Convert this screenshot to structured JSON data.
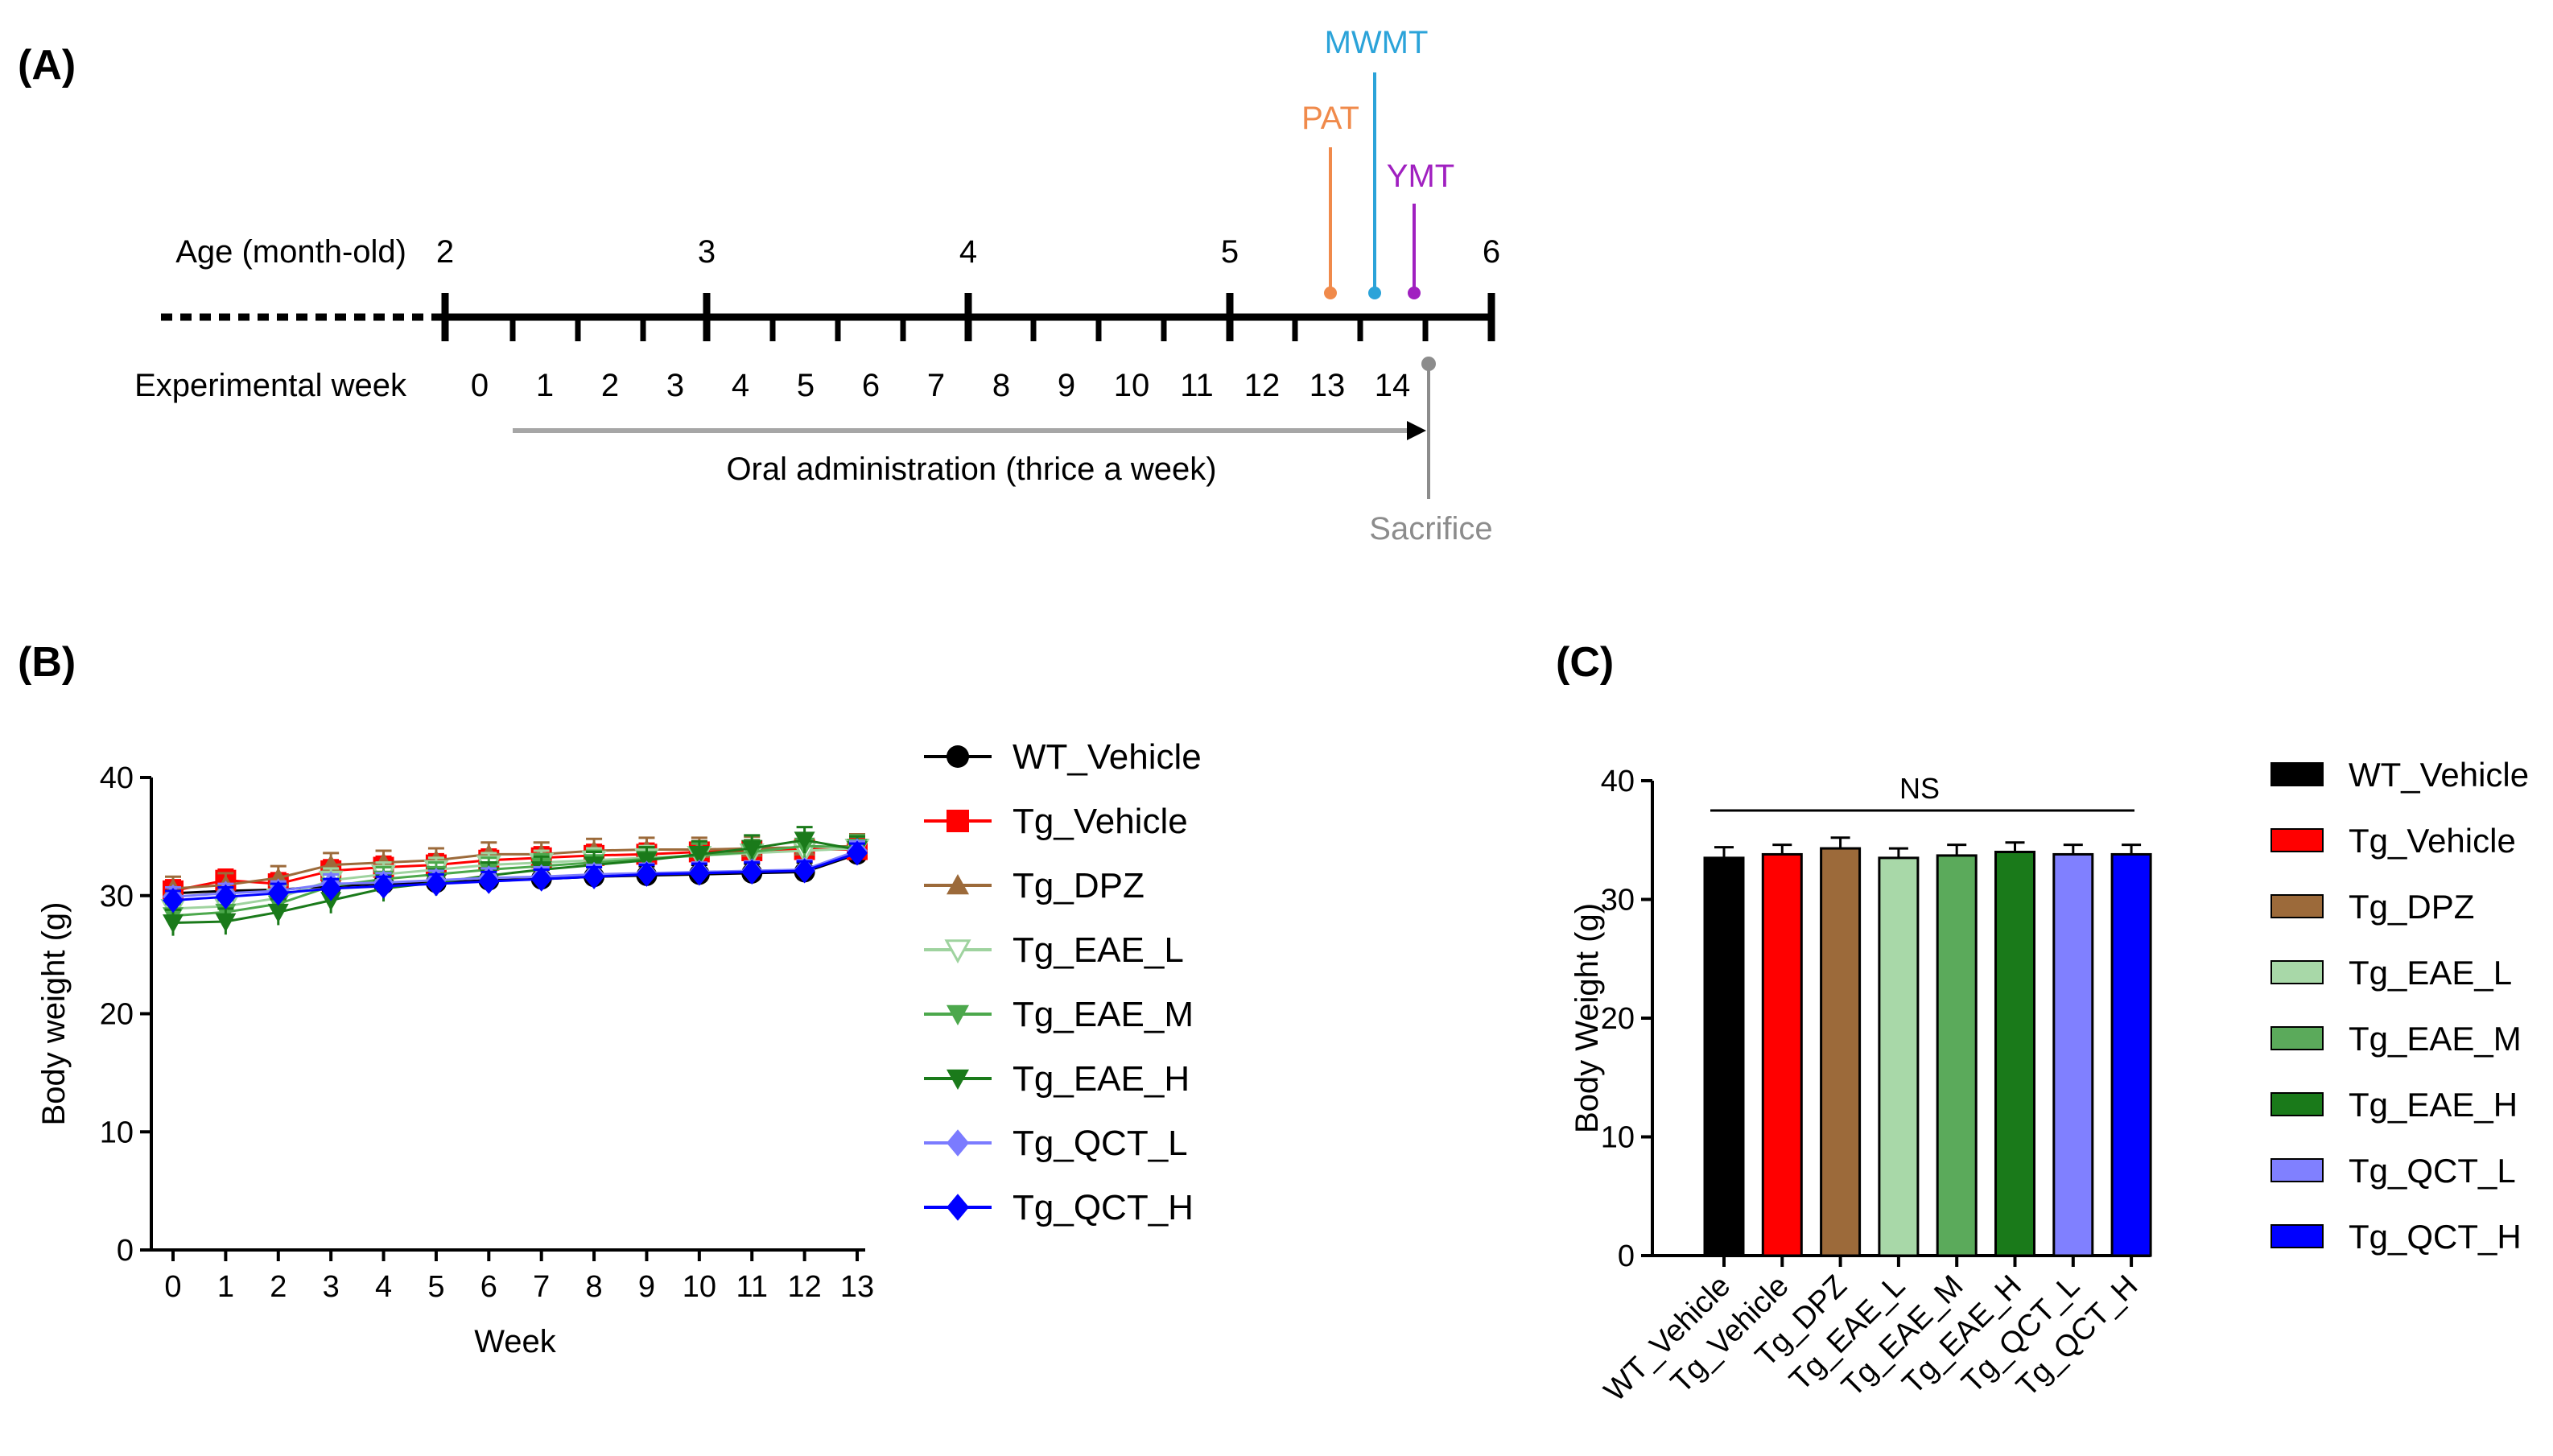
{
  "panels": {
    "a": {
      "label": "(A)",
      "age_label": "Age (month-old)",
      "ages": [
        "2",
        "3",
        "4",
        "5",
        "6"
      ],
      "week_label": "Experimental week",
      "weeks": [
        "0",
        "1",
        "2",
        "3",
        "4",
        "5",
        "6",
        "7",
        "8",
        "9",
        "10",
        "11",
        "12",
        "13",
        "14"
      ],
      "admin_label": "Oral administration (thrice a week)",
      "sacrifice_label": "Sacrifice",
      "events": [
        {
          "label": "PAT",
          "color": "#F08A4B"
        },
        {
          "label": "MWMT",
          "color": "#2BA3D9"
        },
        {
          "label": "YMT",
          "color": "#A020C0"
        }
      ],
      "sacrifice_color": "#8C8C8C",
      "arrow_color": "#A6A6A6"
    },
    "b": {
      "label": "(B)"
    },
    "c": {
      "label": "(C)"
    }
  },
  "chart_data": [
    {
      "type": "line",
      "panel": "B",
      "title": "",
      "xlabel": "Week",
      "ylabel": "Body weight (g)",
      "x": [
        0,
        1,
        2,
        3,
        4,
        5,
        6,
        7,
        8,
        9,
        10,
        11,
        12,
        13
      ],
      "xlim": [
        0,
        13
      ],
      "ylim": [
        0,
        40
      ],
      "yticks": [
        0,
        10,
        20,
        30,
        40
      ],
      "legend": "right",
      "series": [
        {
          "name": "WT_Vehicle",
          "color": "#000000",
          "marker": "circle",
          "values": [
            30.2,
            30.4,
            30.5,
            30.8,
            31.0,
            31.1,
            31.3,
            31.4,
            31.6,
            31.7,
            31.8,
            31.9,
            32.0,
            33.5
          ],
          "errors": [
            0.8,
            0.8,
            0.8,
            0.8,
            0.8,
            0.8,
            0.8,
            0.8,
            0.8,
            0.8,
            0.8,
            0.8,
            0.8,
            0.8
          ]
        },
        {
          "name": "Tg_Vehicle",
          "color": "#FF0000",
          "marker": "square",
          "values": [
            30.4,
            31.3,
            31.0,
            32.1,
            32.4,
            32.6,
            33.0,
            33.2,
            33.4,
            33.5,
            33.7,
            33.8,
            33.9,
            33.9
          ],
          "errors": [
            0.9,
            0.9,
            0.9,
            0.9,
            0.9,
            0.9,
            0.9,
            0.9,
            0.9,
            0.9,
            0.9,
            0.9,
            0.9,
            0.9
          ]
        },
        {
          "name": "Tg_DPZ",
          "color": "#9C6A3A",
          "marker": "triangle-up",
          "values": [
            30.6,
            30.9,
            31.5,
            32.6,
            32.8,
            33.0,
            33.5,
            33.5,
            33.8,
            33.9,
            33.9,
            34.0,
            34.1,
            34.2
          ],
          "errors": [
            1.0,
            1.0,
            1.0,
            1.0,
            1.0,
            1.0,
            1.0,
            1.0,
            1.0,
            1.0,
            1.0,
            1.0,
            1.0,
            1.0
          ]
        },
        {
          "name": "Tg_EAE_L",
          "color": "#9FD39F",
          "marker": "triangle-down-open",
          "values": [
            28.9,
            29.1,
            29.8,
            31.3,
            31.8,
            32.2,
            32.6,
            32.8,
            33.0,
            33.2,
            33.4,
            33.6,
            33.8,
            34.0
          ],
          "errors": [
            1.0,
            1.0,
            1.0,
            1.0,
            1.0,
            1.0,
            1.0,
            1.0,
            1.0,
            1.0,
            1.0,
            1.0,
            1.0,
            1.0
          ]
        },
        {
          "name": "Tg_EAE_M",
          "color": "#4CA84C",
          "marker": "triangle-down",
          "values": [
            28.3,
            28.6,
            29.3,
            30.8,
            31.4,
            31.8,
            32.2,
            32.5,
            32.8,
            33.1,
            33.4,
            33.7,
            34.2,
            34.1
          ],
          "errors": [
            1.0,
            1.0,
            1.0,
            1.0,
            1.0,
            1.0,
            1.0,
            1.0,
            1.0,
            1.0,
            1.0,
            1.0,
            1.0,
            1.0
          ]
        },
        {
          "name": "Tg_EAE_H",
          "color": "#1A7A1A",
          "marker": "triangle-down",
          "values": [
            27.7,
            27.8,
            28.6,
            29.6,
            30.6,
            31.1,
            31.7,
            32.2,
            32.6,
            33.0,
            33.5,
            34.0,
            34.7,
            33.9
          ],
          "errors": [
            1.1,
            1.1,
            1.1,
            1.1,
            1.1,
            1.1,
            1.1,
            1.1,
            1.1,
            1.1,
            1.1,
            1.1,
            1.1,
            1.1
          ]
        },
        {
          "name": "Tg_QCT_L",
          "color": "#7B7BFF",
          "marker": "diamond",
          "values": [
            29.9,
            30.2,
            30.4,
            31.0,
            31.1,
            31.3,
            31.5,
            31.6,
            31.8,
            31.9,
            32.0,
            32.1,
            32.2,
            33.8
          ],
          "errors": [
            0.8,
            0.8,
            0.8,
            0.8,
            0.8,
            0.8,
            0.8,
            0.8,
            0.8,
            0.8,
            0.8,
            0.8,
            0.8,
            0.8
          ]
        },
        {
          "name": "Tg_QCT_H",
          "color": "#0000FF",
          "marker": "diamond",
          "values": [
            29.6,
            29.9,
            30.2,
            30.6,
            30.8,
            31.0,
            31.2,
            31.4,
            31.6,
            31.8,
            31.9,
            32.0,
            32.1,
            33.6
          ],
          "errors": [
            0.8,
            0.8,
            0.8,
            0.8,
            0.8,
            0.8,
            0.8,
            0.8,
            0.8,
            0.8,
            0.8,
            0.8,
            0.8,
            0.8
          ]
        }
      ]
    },
    {
      "type": "bar",
      "panel": "C",
      "title": "",
      "xlabel": "",
      "ylabel": "Body Weight (g)",
      "categories": [
        "WT_Vehicle",
        "Tg_Vehicle",
        "Tg_DPZ",
        "Tg_EAE_L",
        "Tg_EAE_M",
        "Tg_EAE_H",
        "Tg_QCT_L",
        "Tg_QCT_H"
      ],
      "values": [
        33.5,
        33.8,
        34.3,
        33.5,
        33.7,
        34.0,
        33.8,
        33.8
      ],
      "errors": [
        0.9,
        0.8,
        0.9,
        0.8,
        0.9,
        0.8,
        0.8,
        0.8
      ],
      "colors": [
        "#000000",
        "#FF0000",
        "#9C6A3A",
        "#A8D8A8",
        "#5BAA5B",
        "#1A7A1A",
        "#8080FF",
        "#0000FF"
      ],
      "ylim": [
        0,
        40
      ],
      "yticks": [
        0,
        10,
        20,
        30,
        40
      ],
      "annotation": "NS",
      "legend": "right"
    }
  ]
}
